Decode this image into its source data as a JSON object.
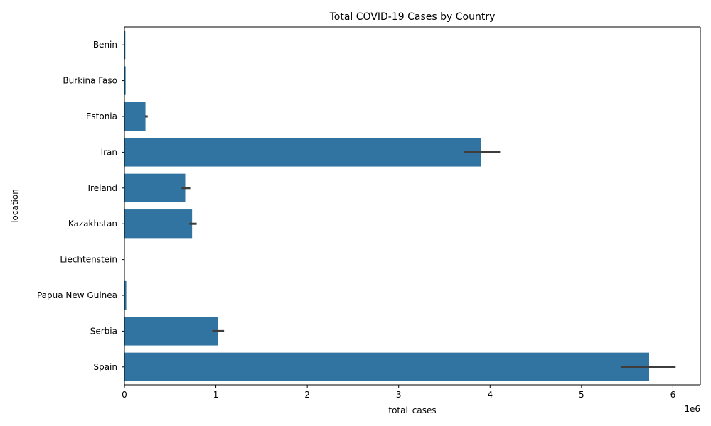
{
  "chart_data": {
    "type": "bar",
    "orientation": "horizontal",
    "title": "Total COVID-19 Cases by Country",
    "xlabel": "total_cases",
    "ylabel": "location",
    "x_offset_label": "1e6",
    "xlim": [
      0,
      6300000
    ],
    "x_ticks": [
      0,
      1000000,
      2000000,
      3000000,
      4000000,
      5000000,
      6000000
    ],
    "x_tick_labels": [
      "0",
      "1",
      "2",
      "3",
      "4",
      "5",
      "6"
    ],
    "categories": [
      "Benin",
      "Burkina Faso",
      "Estonia",
      "Iran",
      "Ireland",
      "Kazakhstan",
      "Liechtenstein",
      "Papua New Guinea",
      "Serbia",
      "Spain"
    ],
    "values": [
      10000,
      13000,
      230000,
      3900000,
      665000,
      740000,
      3000,
      20000,
      1020000,
      5740000
    ],
    "error_low": [
      null,
      null,
      225000,
      3710000,
      625000,
      710000,
      null,
      null,
      960000,
      5430000
    ],
    "error_high": [
      null,
      null,
      255000,
      4110000,
      720000,
      790000,
      null,
      null,
      1090000,
      6030000
    ],
    "bar_color": "#3274a1",
    "error_color": "#3d3d3d",
    "grid": false,
    "legend": "none"
  }
}
